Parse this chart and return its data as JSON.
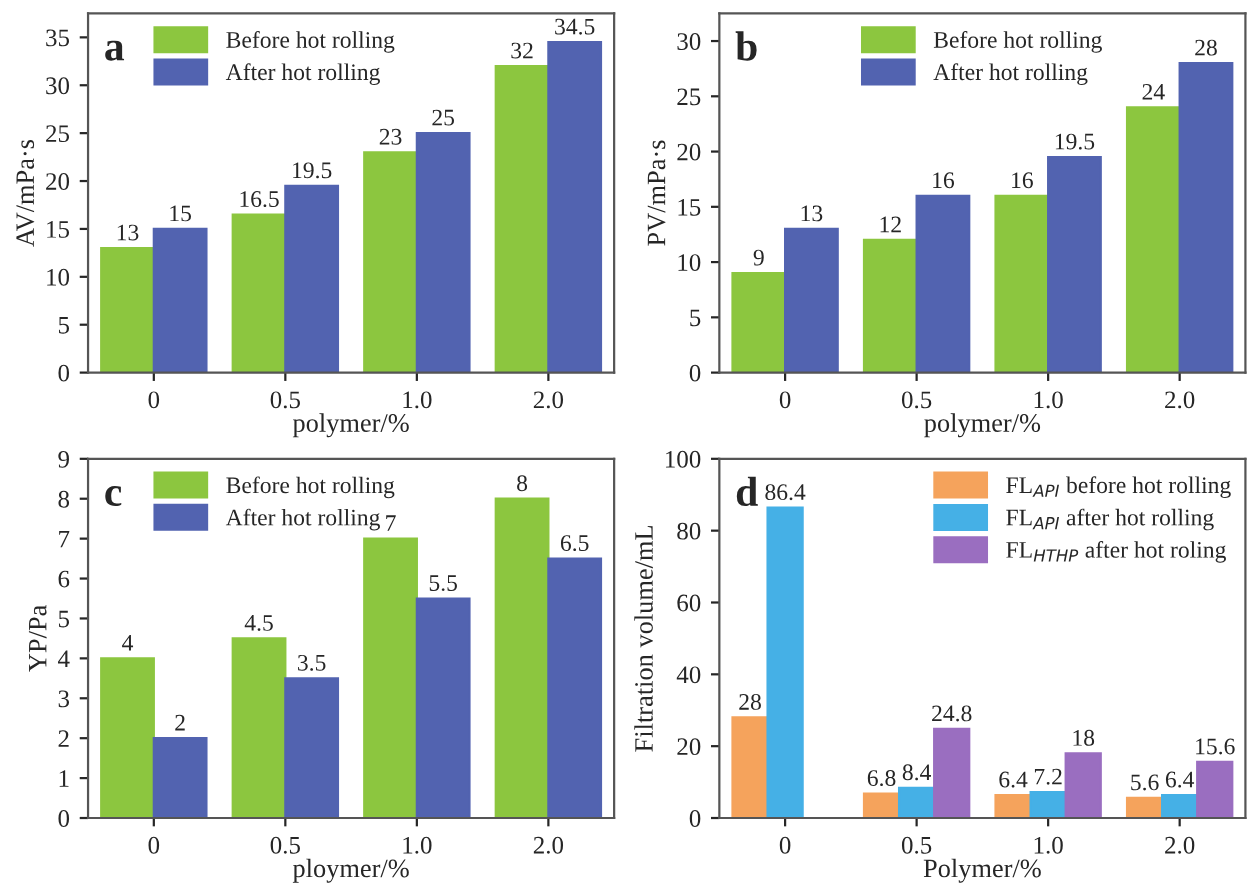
{
  "chart_data": [
    {
      "type": "bar",
      "categories": [
        "0",
        "0.5",
        "1.0",
        "2.0"
      ],
      "xlabel": "polymer/%",
      "ylabel": "AV/mPa·s",
      "annotations": [
        "a"
      ],
      "ylim": [
        0,
        37.5
      ],
      "yticks": [
        0,
        5,
        10,
        15,
        20,
        25,
        30,
        35
      ],
      "data_labels": true,
      "legend": "top left",
      "grid": false,
      "series": [
        {
          "name": "Before hot rolling",
          "color": "#8cc63f",
          "values": [
            13,
            16.5,
            23,
            32
          ]
        },
        {
          "name": "After hot rolling",
          "color": "#5263b0",
          "values": [
            15,
            19.5,
            25,
            34.5
          ]
        }
      ]
    },
    {
      "type": "bar",
      "categories": [
        "0",
        "0.5",
        "1.0",
        "2.0"
      ],
      "xlabel": "polymer/%",
      "ylabel": "PV/mPa·s",
      "annotations": [
        "b"
      ],
      "ylim": [
        0,
        32.5
      ],
      "yticks": [
        0,
        5,
        10,
        15,
        20,
        25,
        30
      ],
      "data_labels": true,
      "legend": "top",
      "grid": false,
      "series": [
        {
          "name": "Before hot rolling",
          "color": "#8cc63f",
          "values": [
            9,
            12,
            16,
            24
          ]
        },
        {
          "name": "After hot rolling",
          "color": "#5263b0",
          "values": [
            13,
            16,
            19.5,
            28
          ]
        }
      ]
    },
    {
      "type": "bar",
      "categories": [
        "0",
        "0.5",
        "1.0",
        "2.0"
      ],
      "xlabel": "ploymer/%",
      "ylabel": "YP/Pa",
      "annotations": [
        "c"
      ],
      "ylim": [
        0,
        9
      ],
      "yticks": [
        0,
        1,
        2,
        3,
        4,
        5,
        6,
        7,
        8,
        9
      ],
      "data_labels": true,
      "legend": "top left",
      "grid": false,
      "series": [
        {
          "name": "Before hot rolling",
          "color": "#8cc63f",
          "values": [
            4,
            4.5,
            7,
            8
          ]
        },
        {
          "name": "After hot rolling",
          "color": "#5263b0",
          "values": [
            2,
            3.5,
            5.5,
            6.5
          ]
        }
      ]
    },
    {
      "type": "bar",
      "categories": [
        "0",
        "0.5",
        "1.0",
        "2.0"
      ],
      "xlabel": "Polymer/%",
      "ylabel": "Filtration volume/mL",
      "annotations": [
        "d"
      ],
      "ylim": [
        0,
        100
      ],
      "yticks": [
        0,
        20,
        40,
        60,
        80,
        100
      ],
      "data_labels": true,
      "legend": "top right",
      "grid": false,
      "series": [
        {
          "name": "FL$_{API}$ before hot rolling",
          "color": "#f5a35c",
          "values": [
            28,
            6.8,
            6.4,
            5.6
          ]
        },
        {
          "name": "FL$_{API}$ after hot rolling",
          "color": "#45b0e6",
          "values": [
            86.4,
            8.4,
            7.2,
            6.4
          ]
        },
        {
          "name": "FL$_{HTHP}$ after hot roling",
          "color": "#9a6ec0",
          "values": [
            null,
            24.8,
            18,
            15.6
          ]
        }
      ]
    }
  ]
}
